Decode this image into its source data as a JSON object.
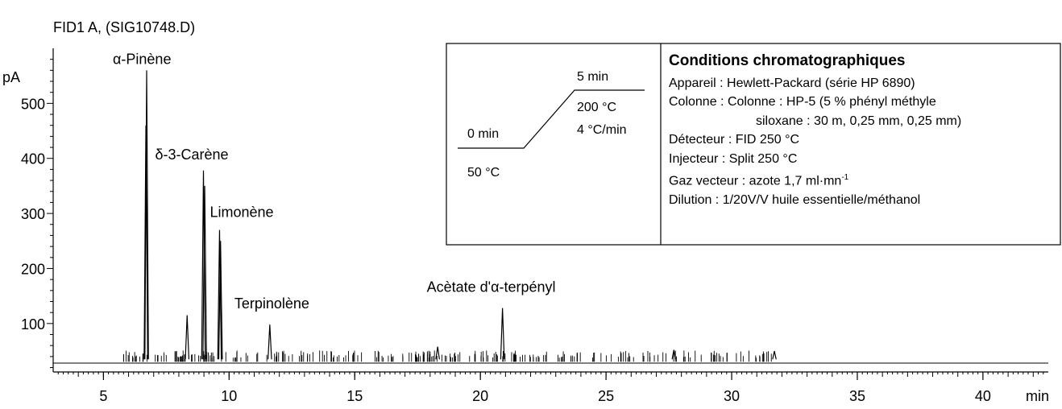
{
  "chart_data": {
    "type": "line",
    "title": "FID1 A, (SIG10748.D)",
    "xlabel": "min",
    "ylabel": "pA",
    "xlim": [
      3.0,
      42.6
    ],
    "ylim": [
      12,
      600
    ],
    "baseline": 35,
    "x_ticks": [
      5,
      10,
      15,
      20,
      25,
      30,
      35,
      40
    ],
    "y_ticks": [
      100,
      200,
      300,
      400,
      500
    ],
    "grid": false,
    "peaks": [
      {
        "x": 6.72,
        "y": 560,
        "label": "α-Pinène"
      },
      {
        "x": 6.69,
        "y": 460
      },
      {
        "x": 8.33,
        "y": 115
      },
      {
        "x": 8.98,
        "y": 378,
        "label": "δ-3-Carène"
      },
      {
        "x": 9.03,
        "y": 350
      },
      {
        "x": 9.62,
        "y": 270,
        "label": "Limonène"
      },
      {
        "x": 9.66,
        "y": 250
      },
      {
        "x": 11.62,
        "y": 98,
        "label": "Terpinolène"
      },
      {
        "x": 18.3,
        "y": 58
      },
      {
        "x": 20.88,
        "y": 128,
        "label": "Acètate d'α-terpényl"
      },
      {
        "x": 27.7,
        "y": 52
      },
      {
        "x": 31.7,
        "y": 50
      }
    ]
  },
  "program": {
    "t0": "0 min",
    "temp0": "50 °C",
    "t1": "5 min",
    "temp1": "200 °C",
    "rate": "4 °C/min"
  },
  "conditions": {
    "title": "Conditions chromatographiques",
    "lines": [
      "Appareil : Hewlett-Packard (série HP 6890)",
      "Colonne :  Colonne :  HP-5  (5 %  phényl  méthyle",
      "siloxane : 30 m, 0,25 mm, 0,25 mm)",
      "Détecteur : FID 250 °C",
      "Injecteur : Split 250 °C",
      "Gaz vecteur : azote 1,7 ml·mn",
      "Dilution : 1/20V/V huile essentielle/méthanol"
    ],
    "superscript": "-1"
  }
}
